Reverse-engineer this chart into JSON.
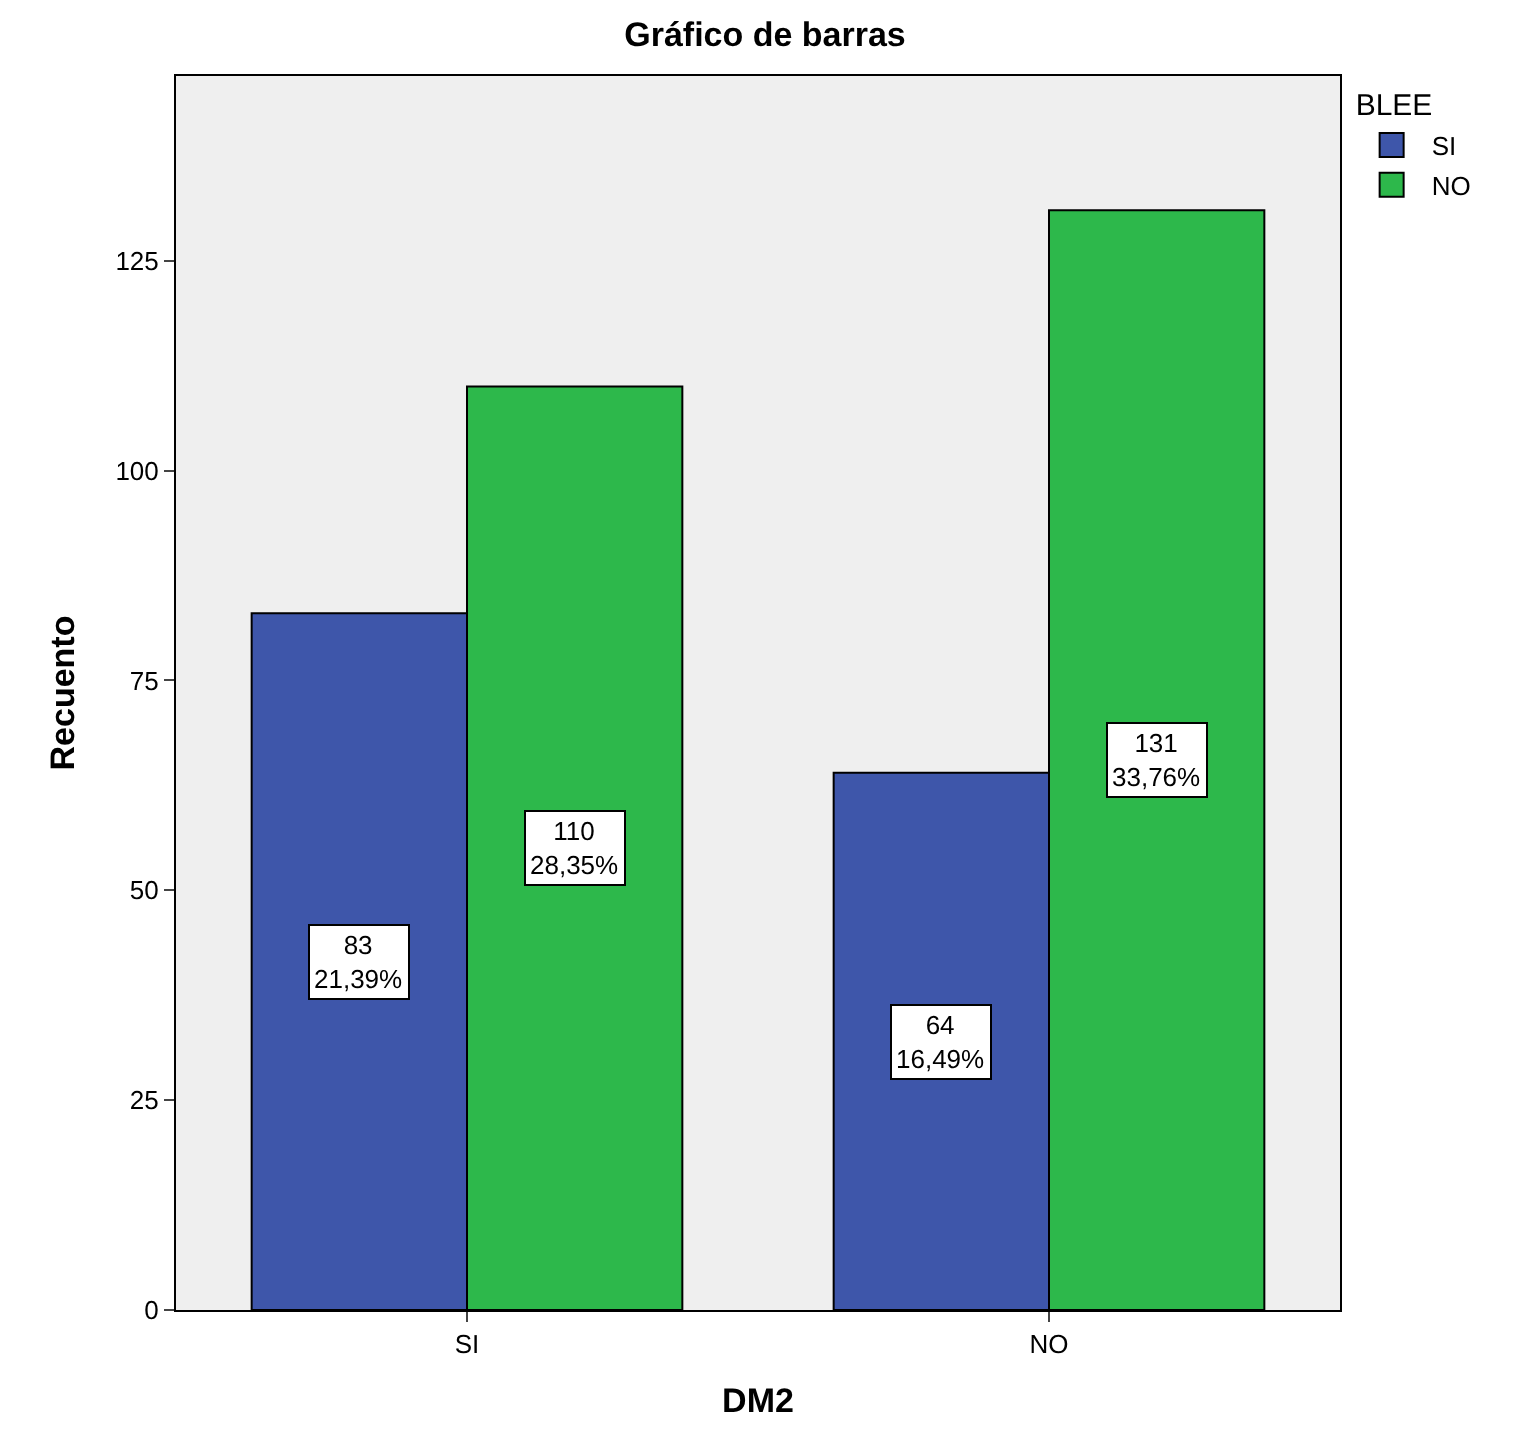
{
  "chart_data": {
    "type": "bar",
    "title": "Gráfico de barras",
    "xlabel": "DM2",
    "ylabel": "Recuento",
    "legend_title": "BLEE",
    "categories": [
      "SI",
      "NO"
    ],
    "series": [
      {
        "name": "SI",
        "color": "#3e56aa",
        "values": [
          83,
          64
        ],
        "value_labels": [
          "83\n21,39%",
          "64\n16,49%"
        ]
      },
      {
        "name": "NO",
        "color": "#2db84b",
        "values": [
          110,
          131
        ],
        "value_labels": [
          "110\n28,35%",
          "131\n33,76%"
        ]
      }
    ],
    "ylim": [
      0,
      147
    ],
    "yticks": [
      0,
      25,
      50,
      75,
      100,
      125
    ],
    "grid": false,
    "legend": "top right"
  }
}
